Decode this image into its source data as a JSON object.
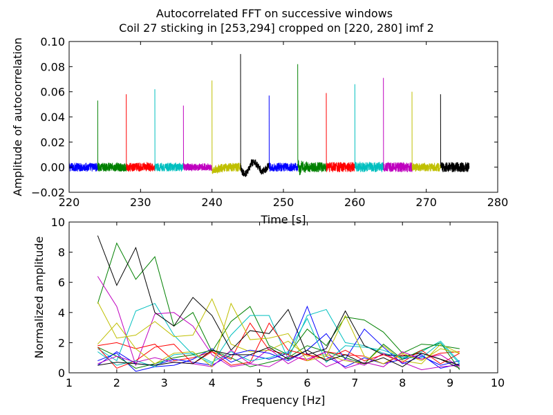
{
  "figure": {
    "title_line1": "Autocorrelated FFT on successive windows",
    "title_line2": "Coil 27 sticking in [253,294] cropped on [220, 280] imf 2"
  },
  "chart_data": [
    {
      "type": "line",
      "xlabel": "Time [s]",
      "ylabel": "Amplitude of autocorrelation",
      "xlim": [
        220,
        280
      ],
      "ylim": [
        -0.02,
        0.1
      ],
      "xticks": [
        "220",
        "230",
        "240",
        "250",
        "260",
        "270",
        "280"
      ],
      "yticks": [
        "−0.02",
        "0.00",
        "0.02",
        "0.04",
        "0.06",
        "0.08",
        "0.10"
      ],
      "grid": false,
      "series": [
        {
          "x_start": 220,
          "x_end": 224,
          "peak": 0.0,
          "noise": 0.0035,
          "color": "#0000ff"
        },
        {
          "x_start": 224,
          "x_end": 228,
          "peak": 0.053,
          "noise": 0.0035,
          "color": "#008000"
        },
        {
          "x_start": 228,
          "x_end": 232,
          "peak": 0.058,
          "noise": 0.0035,
          "color": "#ff0000"
        },
        {
          "x_start": 232,
          "x_end": 236,
          "peak": 0.062,
          "noise": 0.0035,
          "color": "#00bfbf"
        },
        {
          "x_start": 236,
          "x_end": 240,
          "peak": 0.049,
          "noise": 0.003,
          "color": "#bf00bf"
        },
        {
          "x_start": 240,
          "x_end": 244,
          "peak": 0.069,
          "noise": 0.0035,
          "color": "#bfbf00"
        },
        {
          "x_start": 244,
          "x_end": 248,
          "peak": 0.09,
          "noise": 0.003,
          "color": "#000000"
        },
        {
          "x_start": 248,
          "x_end": 252,
          "peak": 0.057,
          "noise": 0.0035,
          "color": "#0000ff"
        },
        {
          "x_start": 252,
          "x_end": 256,
          "peak": 0.082,
          "noise": 0.004,
          "color": "#008000"
        },
        {
          "x_start": 256,
          "x_end": 260,
          "peak": 0.059,
          "noise": 0.004,
          "color": "#ff0000"
        },
        {
          "x_start": 260,
          "x_end": 264,
          "peak": 0.066,
          "noise": 0.004,
          "color": "#00bfbf"
        },
        {
          "x_start": 264,
          "x_end": 268,
          "peak": 0.071,
          "noise": 0.004,
          "color": "#bf00bf"
        },
        {
          "x_start": 268,
          "x_end": 272,
          "peak": 0.06,
          "noise": 0.0035,
          "color": "#bfbf00"
        },
        {
          "x_start": 272,
          "x_end": 276,
          "peak": 0.058,
          "noise": 0.004,
          "color": "#000000"
        }
      ]
    },
    {
      "type": "line",
      "xlabel": "Frequency [Hz]",
      "ylabel": "Normalized amplitude",
      "xlim": [
        1,
        10
      ],
      "ylim": [
        0,
        10
      ],
      "xticks": [
        "1",
        "2",
        "3",
        "4",
        "5",
        "6",
        "7",
        "8",
        "9",
        "10"
      ],
      "yticks": [
        "0",
        "2",
        "4",
        "6",
        "8",
        "10"
      ],
      "grid": false,
      "x": [
        1.6,
        2.0,
        2.4,
        2.8,
        3.2,
        3.6,
        4.0,
        4.4,
        4.8,
        5.2,
        5.6,
        6.0,
        6.4,
        6.8,
        7.2,
        7.6,
        8.0,
        8.4,
        8.8,
        9.2
      ],
      "series": [
        {
          "color": "#0000ff",
          "values": [
            0.8,
            1.3,
            0.1,
            0.4,
            0.5,
            0.9,
            1.6,
            0.7,
            1.2,
            0.9,
            1.3,
            4.4,
            1.1,
            0.4,
            1.0,
            0.6,
            0.9,
            1.2,
            0.3,
            0.6
          ]
        },
        {
          "color": "#008000",
          "values": [
            4.6,
            8.6,
            6.2,
            7.7,
            3.1,
            4.0,
            1.4,
            3.4,
            4.4,
            1.8,
            1.2,
            2.9,
            1.8,
            3.7,
            3.5,
            2.7,
            1.3,
            1.9,
            1.8,
            1.6
          ]
        },
        {
          "color": "#ff0000",
          "values": [
            1.8,
            2.0,
            1.6,
            1.9,
            0.8,
            1.0,
            1.4,
            0.9,
            3.3,
            1.5,
            1.2,
            0.8,
            1.4,
            1.2,
            1.1,
            0.6,
            1.2,
            0.9,
            1.3,
            1.4
          ]
        },
        {
          "color": "#00bfbf",
          "values": [
            1.6,
            0.8,
            4.1,
            4.6,
            2.5,
            1.2,
            0.6,
            2.5,
            3.8,
            3.8,
            0.9,
            3.8,
            4.2,
            2.0,
            1.8,
            1.3,
            1.0,
            1.4,
            2.1,
            0.7
          ]
        },
        {
          "color": "#bf00bf",
          "values": [
            6.4,
            4.4,
            0.5,
            3.9,
            4.0,
            3.1,
            1.2,
            0.4,
            0.6,
            1.6,
            0.6,
            1.3,
            0.4,
            0.9,
            0.5,
            1.3,
            0.7,
            0.2,
            0.4,
            0.5
          ]
        },
        {
          "color": "#bfbf00",
          "values": [
            4.7,
            2.3,
            2.5,
            3.4,
            2.4,
            2.5,
            4.9,
            1.9,
            1.4,
            1.5,
            2.1,
            1.1,
            1.2,
            0.8,
            0.6,
            1.8,
            0.8,
            0.6,
            1.9,
            1.3
          ]
        },
        {
          "color": "#000000",
          "values": [
            9.1,
            5.8,
            8.3,
            4.0,
            3.1,
            5.0,
            3.8,
            1.5,
            2.8,
            2.6,
            4.2,
            1.2,
            1.6,
            4.1,
            1.8,
            1.2,
            1.1,
            1.3,
            0.9,
            0.3
          ]
        },
        {
          "color": "#0000ff",
          "values": [
            0.5,
            1.4,
            0.6,
            0.5,
            0.9,
            0.7,
            0.5,
            1.2,
            1.5,
            1.3,
            0.8,
            1.5,
            2.6,
            0.9,
            2.9,
            1.7,
            0.6,
            1.1,
            0.5,
            0.8
          ]
        },
        {
          "color": "#008000",
          "values": [
            1.7,
            1.1,
            0.3,
            0.6,
            1.0,
            1.2,
            1.5,
            1.0,
            0.4,
            0.7,
            1.0,
            1.8,
            1.4,
            1.0,
            0.6,
            1.9,
            0.9,
            1.5,
            2.0,
            0.2
          ]
        },
        {
          "color": "#ff0000",
          "values": [
            1.7,
            0.3,
            0.8,
            1.7,
            1.9,
            0.6,
            1.4,
            0.5,
            0.7,
            3.3,
            1.5,
            1.2,
            0.9,
            1.5,
            0.8,
            1.2,
            0.7,
            1.5,
            0.6,
            1.3
          ]
        },
        {
          "color": "#00bfbf",
          "values": [
            1.4,
            0.5,
            0.8,
            0.4,
            1.2,
            1.3,
            0.7,
            1.4,
            0.8,
            1.0,
            1.4,
            3.6,
            0.7,
            1.8,
            1.7,
            1.5,
            1.0,
            1.0,
            2.0,
            0.6
          ]
        },
        {
          "color": "#bf00bf",
          "values": [
            0.6,
            1.1,
            0.7,
            1.0,
            0.7,
            0.6,
            0.4,
            1.5,
            0.6,
            0.4,
            1.1,
            0.9,
            1.4,
            0.3,
            0.7,
            0.4,
            1.4,
            0.9,
            1.2,
            0.4
          ]
        },
        {
          "color": "#bfbf00",
          "values": [
            1.9,
            3.3,
            1.6,
            0.6,
            1.3,
            1.4,
            0.4,
            4.6,
            2.2,
            2.3,
            2.6,
            0.8,
            1.1,
            3.8,
            1.1,
            0.6,
            1.3,
            0.8,
            1.6,
            1.3
          ]
        },
        {
          "color": "#000000",
          "values": [
            0.5,
            0.7,
            0.6,
            0.5,
            0.7,
            0.6,
            1.5,
            1.2,
            1.2,
            1.7,
            0.9,
            1.5,
            0.8,
            1.2,
            0.6,
            1.0,
            0.4,
            1.3,
            0.9,
            0.5
          ]
        }
      ]
    }
  ]
}
